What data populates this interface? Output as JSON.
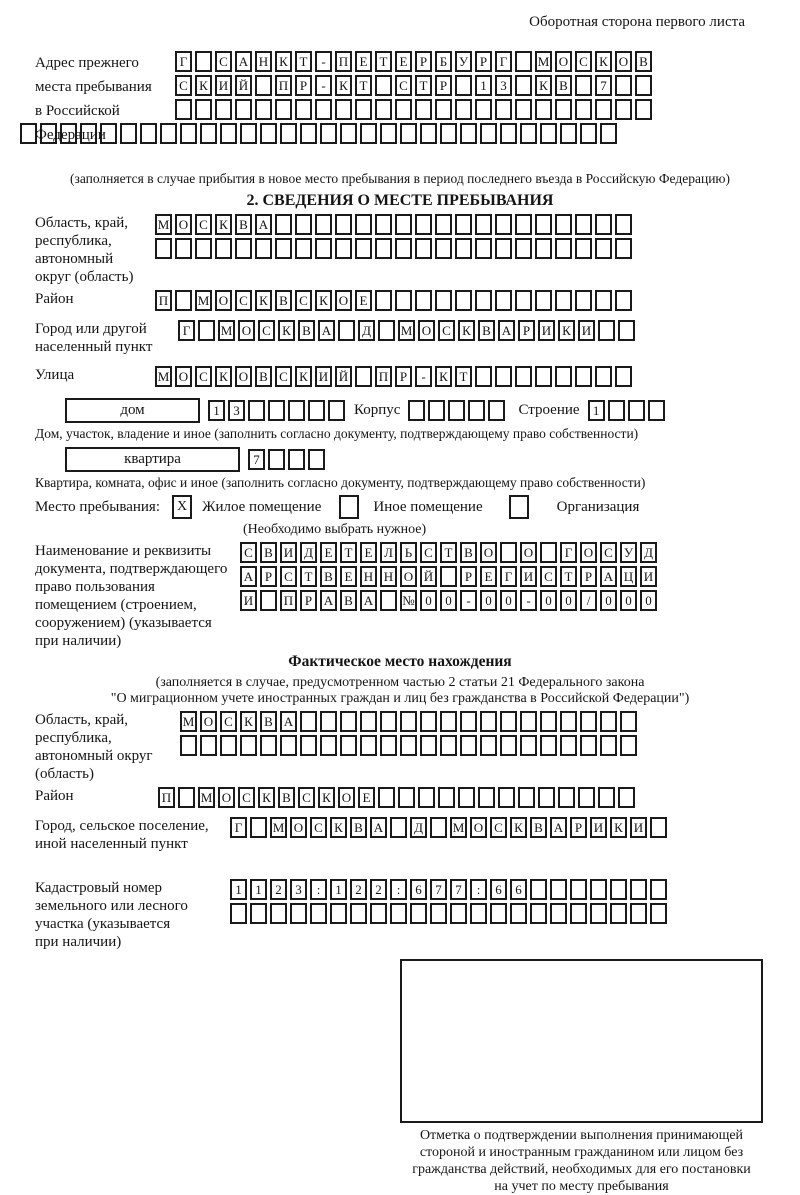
{
  "colors": {
    "ink": "#1a1a1a",
    "paper": "#ffffff"
  },
  "header_note": "Оборотная сторона первого листа",
  "prev_address": {
    "label_lines": [
      "Адрес прежнего",
      "места пребывания",
      "в Российской",
      "Федерации"
    ],
    "rows": [
      {
        "chars": "Г САНКТ-ПЕТЕРБУРГ МОСКОВ",
        "len": 24
      },
      {
        "chars": "СКИЙ ПР-КТ СТР 13 КВ 7",
        "len": 24
      },
      {
        "chars": "",
        "len": 24
      }
    ],
    "full_row": {
      "chars": "",
      "len": 30
    },
    "note": "(заполняется в случае прибытия в новое место пребывания в период последнего въезда в Российскую Федерацию)"
  },
  "section2": {
    "title": "2. СВЕДЕНИЯ О МЕСТЕ ПРЕБЫВАНИЯ",
    "oblast": {
      "label_lines": [
        "Область, край,",
        "республика,",
        "автономный",
        "округ (область)"
      ],
      "rows": [
        {
          "chars": "МОСКВА",
          "len": 24
        },
        {
          "chars": "",
          "len": 24
        }
      ]
    },
    "raion": {
      "label": "Район",
      "row": {
        "chars": "П МОСКВСКОЕ",
        "len": 24
      }
    },
    "gorod": {
      "label_lines": [
        "Город или другой",
        "населенный пункт"
      ],
      "row": {
        "chars": "Г МОСКВА Д МОСКВАРИКИ",
        "len": 23
      }
    },
    "ulitsa": {
      "label": "Улица",
      "row": {
        "chars": "МОСКОВСКИЙ ПР-КТ",
        "len": 24
      }
    },
    "dom": {
      "box_label": "дом",
      "cells": {
        "chars": "13",
        "len": 7
      },
      "korpus_label": "Корпус",
      "korpus_cells": {
        "chars": "",
        "len": 5
      },
      "stroenie_label": "Строение",
      "stroenie_cells": {
        "chars": "1",
        "len": 4
      }
    },
    "dom_note": "Дом, участок, владение и иное (заполнить согласно документу, подтверждающему право собственности)",
    "kvartira": {
      "box_label": "квартира",
      "cells": {
        "chars": "7",
        "len": 4
      }
    },
    "kvartira_note": "Квартира, комната, офис и иное (заполнить согласно документу, подтверждающему право собственности)",
    "mesto": {
      "label": "Место пребывания:",
      "options": [
        {
          "label": "Жилое помещение",
          "mark": "X"
        },
        {
          "label": "Иное помещение",
          "mark": ""
        },
        {
          "label": "Организация",
          "mark": ""
        }
      ],
      "note": "(Необходимо выбрать нужное)"
    },
    "document": {
      "label_lines": [
        "Наименование и реквизиты",
        "документа, подтверждающего",
        "право пользования",
        "помещением (строением,",
        "сооружением) (указывается",
        "при наличии)"
      ],
      "rows": [
        {
          "chars": "СВИДЕТЕЛЬСТВО О ГОСУД",
          "len": 21
        },
        {
          "chars": "АРСТВЕННОЙ РЕГИСТРАЦИ",
          "len": 21
        },
        {
          "chars": "И ПРАВА №00-00-00/000",
          "len": 21
        }
      ]
    }
  },
  "factual": {
    "title": "Фактическое место нахождения",
    "note_lines": [
      "(заполняется в случае, предусмотренном частью 2 статьи 21 Федерального закона",
      "\"О миграционном учете иностранных граждан и лиц без гражданства в Российской Федерации\")"
    ],
    "oblast": {
      "label_lines": [
        "Область, край,",
        "республика,",
        "автономный округ",
        "(область)"
      ],
      "rows": [
        {
          "chars": "МОСКВА",
          "len": 23
        },
        {
          "chars": "",
          "len": 23
        }
      ]
    },
    "raion": {
      "label": "Район",
      "row": {
        "chars": "П МОСКВСКОЕ",
        "len": 24
      }
    },
    "gorod": {
      "label_lines": [
        "Город, сельское поселение,",
        "иной населенный пункт"
      ],
      "row": {
        "chars": "Г МОСКВА Д МОСКВАРИКИ",
        "len": 22
      }
    },
    "kadastr": {
      "label_lines": [
        "Кадастровый номер",
        "земельного или лесного",
        "участка (указывается",
        "при наличии)"
      ],
      "rows": [
        {
          "chars": "1123:122:677:66",
          "len": 22
        },
        {
          "chars": "",
          "len": 22
        }
      ]
    }
  },
  "stamp": {
    "caption_lines": [
      "Отметка о подтверждении выполнения принимающей",
      "стороной и иностранным гражданином или лицом без",
      "гражданства действий, необходимых для его постановки",
      "на учет по месту пребывания"
    ]
  }
}
